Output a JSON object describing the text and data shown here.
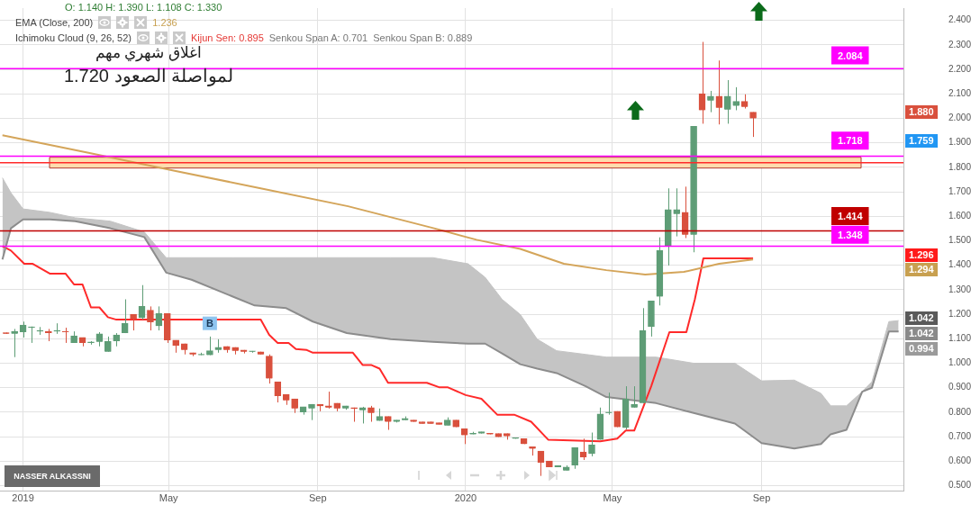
{
  "chart_data": {
    "type": "candlestick",
    "x": [
      "2018-12-18",
      "2018-12-25",
      "2019-01-01",
      "2019-01-08",
      "2019-01-15",
      "2019-01-22",
      "2019-01-29",
      "2019-02-05",
      "2019-02-12",
      "2019-02-19",
      "2019-02-26",
      "2019-03-05",
      "2019-03-12",
      "2019-03-19",
      "2019-03-26",
      "2019-04-02",
      "2019-04-09",
      "2019-04-16",
      "2019-04-23",
      "2019-04-30",
      "2019-05-07",
      "2019-05-14",
      "2019-05-21",
      "2019-05-28",
      "2019-06-04",
      "2019-06-11",
      "2019-06-18",
      "2019-06-25",
      "2019-07-02",
      "2019-07-09",
      "2019-07-16",
      "2019-07-23",
      "2019-07-30",
      "2019-08-06",
      "2019-08-13",
      "2019-08-20",
      "2019-08-27",
      "2019-09-03",
      "2019-09-10",
      "2019-09-17",
      "2019-09-24",
      "2019-10-01",
      "2019-10-08",
      "2019-10-15",
      "2019-10-22",
      "2019-10-29",
      "2019-11-05",
      "2019-11-12",
      "2019-11-19",
      "2019-11-26",
      "2019-12-03",
      "2019-12-10",
      "2019-12-17",
      "2019-12-24",
      "2019-12-31",
      "2020-01-07",
      "2020-01-14",
      "2020-01-21",
      "2020-01-28",
      "2020-02-04",
      "2020-02-11",
      "2020-02-18",
      "2020-02-25",
      "2020-03-03",
      "2020-03-10",
      "2020-03-17",
      "2020-03-24",
      "2020-03-31",
      "2020-04-07",
      "2020-04-14",
      "2020-04-21",
      "2020-04-28",
      "2020-05-05",
      "2020-05-12",
      "2020-05-19",
      "2020-05-26",
      "2020-06-02",
      "2020-06-09",
      "2020-06-16",
      "2020-06-23",
      "2020-06-30",
      "2020-07-07",
      "2020-07-14",
      "2020-07-21",
      "2020-07-28",
      "2020-08-04",
      "2020-08-11",
      "2020-08-18",
      "2020-08-25"
    ],
    "ohlc": [
      [
        1.125,
        1.125,
        1.12,
        1.12
      ],
      [
        1.12,
        1.14,
        1.025,
        1.13
      ],
      [
        1.127,
        1.17,
        1.105,
        1.156
      ],
      [
        1.145,
        1.15,
        1.083,
        1.148
      ],
      [
        1.13,
        1.148,
        1.116,
        1.132
      ],
      [
        1.13,
        1.14,
        1.09,
        1.123
      ],
      [
        1.13,
        1.163,
        1.12,
        1.132
      ],
      [
        1.13,
        1.145,
        1.083,
        1.127
      ],
      [
        1.083,
        1.13,
        1.083,
        1.112
      ],
      [
        1.105,
        1.105,
        1.069,
        1.083
      ],
      [
        1.083,
        1.09,
        1.076,
        1.087
      ],
      [
        1.087,
        1.127,
        1.069,
        1.12
      ],
      [
        1.047,
        1.109,
        1.047,
        1.09
      ],
      [
        1.09,
        1.123,
        1.069,
        1.116
      ],
      [
        1.123,
        1.261,
        1.123,
        1.163
      ],
      [
        1.2,
        1.2,
        1.134,
        1.18
      ],
      [
        1.185,
        1.319,
        1.178,
        1.232
      ],
      [
        1.217,
        1.232,
        1.134,
        1.167
      ],
      [
        1.152,
        1.232,
        1.134,
        1.203
      ],
      [
        1.203,
        1.203,
        1.083,
        1.094
      ],
      [
        1.094,
        1.094,
        1.043,
        1.072
      ],
      [
        1.08,
        1.08,
        1.036,
        1.054
      ],
      [
        1.043,
        1.043,
        1.029,
        1.036
      ],
      [
        1.033,
        1.043,
        1.033,
        1.036
      ],
      [
        1.033,
        1.109,
        1.033,
        1.051
      ],
      [
        1.054,
        1.098,
        1.043,
        1.065
      ],
      [
        1.069,
        1.069,
        1.043,
        1.054
      ],
      [
        1.065,
        1.065,
        1.036,
        1.051
      ],
      [
        1.054,
        1.054,
        1.04,
        1.047
      ],
      [
        1.047,
        1.05,
        1.043,
        1.05
      ],
      [
        1.047,
        1.047,
        1.036,
        1.036
      ],
      [
        1.029,
        1.036,
        0.917,
        0.938
      ],
      [
        0.924,
        0.924,
        0.84,
        0.866
      ],
      [
        0.873,
        0.873,
        0.83,
        0.848
      ],
      [
        0.855,
        0.855,
        0.797,
        0.815
      ],
      [
        0.8,
        0.822,
        0.79,
        0.822
      ],
      [
        0.815,
        0.833,
        0.768,
        0.833
      ],
      [
        0.833,
        0.833,
        0.804,
        0.826
      ],
      [
        0.826,
        0.884,
        0.815,
        0.819
      ],
      [
        0.837,
        0.837,
        0.804,
        0.815
      ],
      [
        0.815,
        0.826,
        0.81,
        0.826
      ],
      [
        0.819,
        0.819,
        0.761,
        0.815
      ],
      [
        0.808,
        0.822,
        0.754,
        0.819
      ],
      [
        0.819,
        0.826,
        0.761,
        0.797
      ],
      [
        0.765,
        0.815,
        0.765,
        0.783
      ],
      [
        0.783,
        0.783,
        0.728,
        0.761
      ],
      [
        0.761,
        0.768,
        0.758,
        0.768
      ],
      [
        0.768,
        0.783,
        0.768,
        0.775
      ],
      [
        0.768,
        0.768,
        0.761,
        0.761
      ],
      [
        0.761,
        0.761,
        0.754,
        0.754
      ],
      [
        0.761,
        0.761,
        0.754,
        0.754
      ],
      [
        0.757,
        0.757,
        0.75,
        0.75
      ],
      [
        0.746,
        0.779,
        0.746,
        0.768
      ],
      [
        0.768,
        0.768,
        0.739,
        0.739
      ],
      [
        0.732,
        0.732,
        0.67,
        0.706
      ],
      [
        0.71,
        0.72,
        0.71,
        0.713
      ],
      [
        0.713,
        0.72,
        0.713,
        0.72
      ],
      [
        0.713,
        0.713,
        0.71,
        0.71
      ],
      [
        0.713,
        0.713,
        0.699,
        0.699
      ],
      [
        0.713,
        0.713,
        0.688,
        0.702
      ],
      [
        0.692,
        0.695,
        0.692,
        0.695
      ],
      [
        0.692,
        0.692,
        0.67,
        0.67
      ],
      [
        0.659,
        0.659,
        0.623,
        0.652
      ],
      [
        0.641,
        0.641,
        0.54,
        0.594
      ],
      [
        0.601,
        0.601,
        0.576,
        0.576
      ],
      [
        0.576,
        0.583,
        0.576,
        0.583
      ],
      [
        0.562,
        0.583,
        0.562,
        0.576
      ],
      [
        0.583,
        0.656,
        0.569,
        0.656
      ],
      [
        0.638,
        0.692,
        0.605,
        0.616
      ],
      [
        0.63,
        0.717,
        0.62,
        0.667
      ],
      [
        0.688,
        0.819,
        0.688,
        0.793
      ],
      [
        0.797,
        0.88,
        0.79,
        0.8
      ],
      [
        0.804,
        0.804,
        0.739,
        0.739
      ],
      [
        0.736,
        0.906,
        0.73,
        0.855
      ],
      [
        0.819,
        0.906,
        0.819,
        0.833
      ],
      [
        0.837,
        1.225,
        0.837,
        1.134
      ],
      [
        1.149,
        1.254,
        1.109,
        1.254
      ],
      [
        1.272,
        1.514,
        1.236,
        1.46
      ],
      [
        1.478,
        1.714,
        1.399,
        1.627
      ],
      [
        1.609,
        1.714,
        1.518,
        1.627
      ],
      [
        1.616,
        1.721,
        1.511,
        1.525
      ],
      [
        1.525,
        1.967,
        1.453,
        1.967
      ],
      [
        2.101,
        2.312,
        1.978,
        2.033
      ],
      [
        2.072,
        2.112,
        2.025,
        2.09
      ],
      [
        2.09,
        2.236,
        1.975,
        2.043
      ],
      [
        2.036,
        2.156,
        1.978,
        2.09
      ],
      [
        2.051,
        2.127,
        2.033,
        2.069
      ],
      [
        2.069,
        2.098,
        2.04,
        2.047
      ],
      [
        2.025,
        2.025,
        1.924,
        2.0
      ]
    ],
    "colors": [
      "#d9503d",
      "#5e9d76",
      "#5e9d76",
      "#5e9d76",
      "#5e9d76",
      "#d9503d",
      "#5e9d76",
      "#d9503d",
      "#5e9d76",
      "#d9503d",
      "#5e9d76",
      "#5e9d76",
      "#5e9d76",
      "#5e9d76",
      "#5e9d76",
      "#d9503d",
      "#5e9d76",
      "#d9503d",
      "#5e9d76",
      "#d9503d",
      "#d9503d",
      "#d9503d",
      "#d9503d",
      "#5e9d76",
      "#5e9d76",
      "#5e9d76",
      "#d9503d",
      "#d9503d",
      "#d9503d",
      "#5e9d76",
      "#d9503d",
      "#d9503d",
      "#d9503d",
      "#d9503d",
      "#d9503d",
      "#5e9d76",
      "#5e9d76",
      "#d9503d",
      "#d9503d",
      "#d9503d",
      "#5e9d76",
      "#d9503d",
      "#5e9d76",
      "#d9503d",
      "#5e9d76",
      "#d9503d",
      "#5e9d76",
      "#5e9d76",
      "#d9503d",
      "#d9503d",
      "#d9503d",
      "#d9503d",
      "#5e9d76",
      "#d9503d",
      "#d9503d",
      "#5e9d76",
      "#5e9d76",
      "#d9503d",
      "#d9503d",
      "#d9503d",
      "#5e9d76",
      "#d9503d",
      "#d9503d",
      "#d9503d",
      "#d9503d",
      "#5e9d76",
      "#5e9d76",
      "#5e9d76",
      "#d9503d",
      "#5e9d76",
      "#5e9d76",
      "#5e9d76",
      "#d9503d",
      "#5e9d76",
      "#5e9d76",
      "#5e9d76",
      "#5e9d76",
      "#5e9d76",
      "#5e9d76",
      "#5e9d76",
      "#d9503d",
      "#5e9d76",
      "#d9503d",
      "#5e9d76",
      "#d9503d",
      "#5e9d76",
      "#5e9d76",
      "#d9503d",
      "#d9503d"
    ],
    "series": [
      {
        "type": "area",
        "color": "#c4c4c4",
        "x": [
          "2018-12-15",
          "2018-12-22",
          "2019-01-01",
          "2019-01-23",
          "2019-02-13",
          "2019-03-14",
          "2019-04-11",
          "2019-04-29",
          "2019-05-20",
          "2019-06-23",
          "2019-07-11",
          "2019-08-06",
          "2019-08-28",
          "2019-09-25",
          "2019-10-31",
          "2019-12-05",
          "2020-01-03",
          "2020-01-17",
          "2020-01-31",
          "2020-02-15",
          "2020-02-29",
          "2020-03-16",
          "2020-04-09",
          "2020-04-26",
          "2020-06-06",
          "2020-07-07",
          "2020-08-10",
          "2020-09-01",
          "2020-09-28",
          "2020-10-20",
          "2020-10-28",
          "2020-11-10",
          "2020-11-23",
          "2020-12-01",
          "2020-12-15",
          "2020-12-23"
        ],
        "values": [
          1.757,
          1.696,
          1.63,
          1.616,
          1.594,
          1.58,
          1.536,
          1.431,
          1.431,
          1.431,
          1.431,
          1.431,
          1.431,
          1.431,
          1.431,
          1.431,
          1.406,
          1.351,
          1.261,
          1.199,
          1.098,
          1.051,
          1.036,
          1.025,
          1.025,
          1.0,
          1.0,
          0.928,
          0.931,
          0.877,
          0.826,
          0.826,
          0.884,
          0.924,
          1.17,
          1.174
        ]
      },
      {
        "type": "line",
        "color": "#8c8c8c",
        "x": [
          "2018-12-15",
          "2018-12-22",
          "2019-01-01",
          "2019-01-23",
          "2019-02-13",
          "2019-03-14",
          "2019-04-11",
          "2019-04-29",
          "2019-05-20",
          "2019-06-23",
          "2019-07-11",
          "2019-08-06",
          "2019-08-28",
          "2019-09-25",
          "2019-10-31",
          "2019-12-05",
          "2020-01-03",
          "2020-01-17",
          "2020-01-31",
          "2020-02-15",
          "2020-02-29",
          "2020-03-16",
          "2020-04-09",
          "2020-04-26",
          "2020-06-06",
          "2020-07-07",
          "2020-08-10",
          "2020-09-01",
          "2020-09-28",
          "2020-10-20",
          "2020-10-28",
          "2020-11-10",
          "2020-11-23",
          "2020-12-01",
          "2020-12-15",
          "2020-12-23"
        ],
        "values": [
          1.424,
          1.551,
          1.587,
          1.587,
          1.58,
          1.551,
          1.515,
          1.37,
          1.341,
          1.272,
          1.236,
          1.225,
          1.17,
          1.123,
          1.098,
          1.087,
          1.08,
          1.08,
          1.04,
          0.996,
          0.978,
          0.96,
          0.906,
          0.862,
          0.837,
          0.797,
          0.754,
          0.674,
          0.652,
          0.67,
          0.71,
          0.728,
          0.884,
          0.9,
          1.13,
          1.13
        ]
      },
      {
        "type": "line",
        "color": "#d4a55a",
        "x": [
          "2018-12-15",
          "2019-02-24",
          "2019-05-06",
          "2019-07-16",
          "2019-09-26",
          "2019-12-06",
          "2020-01-10",
          "2020-02-15",
          "2020-03-22",
          "2020-04-26",
          "2020-05-28",
          "2020-06-29",
          "2020-07-28",
          "2020-08-25"
        ],
        "values": [
          1.931,
          1.859,
          1.786,
          1.714,
          1.641,
          1.551,
          1.504,
          1.467,
          1.406,
          1.38,
          1.362,
          1.373,
          1.406,
          1.424
        ]
      },
      {
        "type": "line",
        "color": "#ff2a2a",
        "x": [
          "2018-12-15",
          "2018-12-22",
          "2019-01-02",
          "2019-01-09",
          "2019-01-23",
          "2019-02-05",
          "2019-02-12",
          "2019-02-19",
          "2019-02-26",
          "2019-03-05",
          "2019-03-12",
          "2019-03-19",
          "2019-07-16",
          "2019-07-23",
          "2019-07-30",
          "2019-08-08",
          "2019-08-14",
          "2019-08-23",
          "2019-08-28",
          "2019-09-30",
          "2019-10-08",
          "2019-10-15",
          "2019-10-22",
          "2019-10-29",
          "2019-11-30",
          "2019-12-10",
          "2019-12-17",
          "2020-01-01",
          "2020-01-14",
          "2020-01-27",
          "2020-02-10",
          "2020-02-24",
          "2020-03-09",
          "2020-04-21",
          "2020-05-05",
          "2020-05-12",
          "2020-05-19",
          "2020-06-02",
          "2020-06-17",
          "2020-07-01",
          "2020-07-08",
          "2020-07-15",
          "2020-08-25"
        ],
        "values": [
          1.478,
          1.46,
          1.406,
          1.406,
          1.366,
          1.366,
          1.322,
          1.322,
          1.228,
          1.228,
          1.188,
          1.178,
          1.178,
          1.116,
          1.083,
          1.083,
          1.058,
          1.054,
          1.043,
          1.043,
          0.993,
          0.993,
          0.978,
          0.92,
          0.92,
          0.902,
          0.902,
          0.87,
          0.855,
          0.79,
          0.79,
          0.761,
          0.688,
          0.681,
          0.692,
          0.725,
          0.725,
          0.906,
          1.127,
          1.127,
          1.261,
          1.428,
          1.428
        ]
      }
    ],
    "xlim": [
      "2018-12-13",
      "2020-12-27"
    ],
    "xticks": [
      {
        "value": "2019-01-01",
        "label": "2019"
      },
      {
        "value": "2019-05-01",
        "label": "May"
      },
      {
        "value": "2019-09-01",
        "label": "Sep"
      },
      {
        "value": "2020-01-01",
        "label": "2020"
      },
      {
        "value": "2020-05-01",
        "label": "May"
      },
      {
        "value": "2020-09-01",
        "label": "Sep"
      }
    ],
    "ylim": [
      0.48,
      2.45
    ],
    "yticks": [
      {
        "value": 0.5,
        "label": "0.500"
      },
      {
        "value": 0.6,
        "label": "0.600"
      },
      {
        "value": 0.7,
        "label": "0.700"
      },
      {
        "value": 0.8,
        "label": "0.800"
      },
      {
        "value": 0.9,
        "label": "0.900"
      },
      {
        "value": 1.0,
        "label": "1.000"
      },
      {
        "value": 1.1,
        "label": "1.100"
      },
      {
        "value": 1.2,
        "label": "1.200"
      },
      {
        "value": 1.3,
        "label": "1.300"
      },
      {
        "value": 1.4,
        "label": "1.400"
      },
      {
        "value": 1.5,
        "label": "1.500"
      },
      {
        "value": 1.6,
        "label": "1.600"
      },
      {
        "value": 1.7,
        "label": "1.700"
      },
      {
        "value": 1.8,
        "label": "1.800"
      },
      {
        "value": 1.9,
        "label": "1.900"
      },
      {
        "value": 2.0,
        "label": "2.000"
      },
      {
        "value": 2.1,
        "label": "2.100"
      },
      {
        "value": 2.2,
        "label": "2.200"
      },
      {
        "value": 2.3,
        "label": "2.300"
      },
      {
        "value": 2.4,
        "label": "2.400"
      }
    ],
    "grid": true,
    "bands": [
      {
        "axis": "y",
        "from": 1.797,
        "to": 1.841,
        "color": "#ffdcae"
      }
    ],
    "ref_lines": [
      {
        "axis": "y",
        "value": 2.203,
        "color": "#ff00ff"
      },
      {
        "axis": "y",
        "value": 1.845,
        "color": "#ff00ff"
      },
      {
        "axis": "y",
        "value": 1.819,
        "color": "#ff2a2a"
      },
      {
        "axis": "y",
        "value": 1.54,
        "color": "#c00000"
      },
      {
        "axis": "y",
        "value": 1.478,
        "color": "#ff00ff"
      }
    ],
    "annotations": [
      "O: 1.140 H: 1.390 L: 1.108 C: 1.330",
      "EMA (Close, 200)",
      "1.236",
      "Ichimoku Cloud (9, 26, 52)",
      "Kijun Sen: 0.895",
      "Senkou Span A: 0.701",
      "Senkou Span B: 0.889",
      "اغلاق شهري مهم",
      "لمواصلة الصعود 1.720",
      "NASSER ALKASSNI",
      {
        "text": "B",
        "x": "2019-06-04",
        "y": 1.163
      },
      "1.880",
      "1.759",
      "1.296",
      "1.294",
      "1.042",
      "1.042",
      "0.994",
      {
        "text": "2.084",
        "x": "2020-11-13",
        "y": 2.257
      },
      {
        "text": "1.718",
        "x": "2020-11-13",
        "y": 1.909
      },
      {
        "text": "1.414",
        "x": "2020-11-13",
        "y": 1.601
      },
      {
        "text": "1.348",
        "x": "2020-11-13",
        "y": 1.525
      }
    ]
  }
}
